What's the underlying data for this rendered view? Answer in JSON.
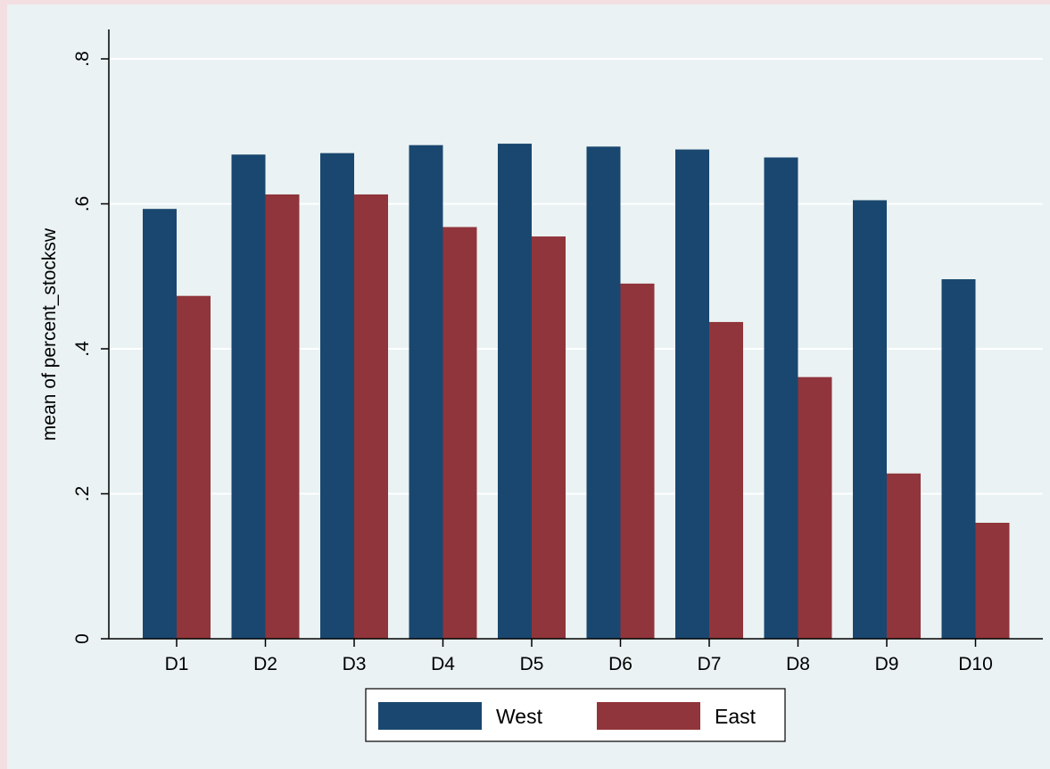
{
  "chart_data": {
    "type": "bar",
    "categories": [
      "D1",
      "D2",
      "D3",
      "D4",
      "D5",
      "D6",
      "D7",
      "D8",
      "D9",
      "D10"
    ],
    "series": [
      {
        "name": "West",
        "color": "#1a476f",
        "values": [
          0.593,
          0.668,
          0.67,
          0.681,
          0.683,
          0.679,
          0.675,
          0.664,
          0.605,
          0.496
        ]
      },
      {
        "name": "East",
        "color": "#90353b",
        "values": [
          0.473,
          0.613,
          0.613,
          0.568,
          0.555,
          0.49,
          0.437,
          0.361,
          0.228,
          0.16
        ]
      }
    ],
    "title": "",
    "xlabel": "",
    "ylabel": "mean of percent_stocksw",
    "ylim": [
      0,
      0.8
    ],
    "yticks": [
      {
        "value": 0,
        "label": "0"
      },
      {
        "value": 0.2,
        "label": ".2"
      },
      {
        "value": 0.4,
        "label": ".4"
      },
      {
        "value": 0.6,
        "label": ".6"
      },
      {
        "value": 0.8,
        "label": ".8"
      }
    ],
    "grid": true,
    "legend_position": "bottom"
  }
}
